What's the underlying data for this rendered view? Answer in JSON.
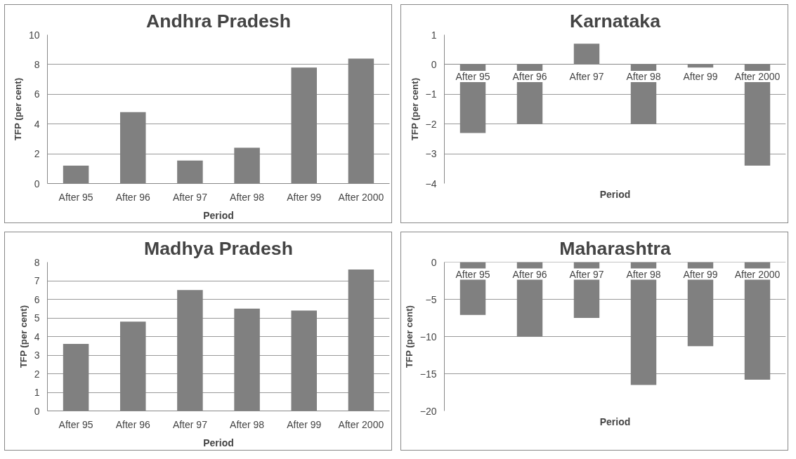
{
  "chart_data": [
    {
      "type": "bar",
      "title": "Andhra Pradesh",
      "xlabel": "Period",
      "ylabel": "TFP (per cent)",
      "categories": [
        "After 95",
        "After 96",
        "After 97",
        "After 98",
        "After 99",
        "After 2000"
      ],
      "values": [
        1.2,
        4.8,
        1.55,
        2.4,
        7.8,
        8.4
      ],
      "color": "#808080",
      "ylim": [
        0,
        10
      ],
      "yticks": [
        0,
        2,
        4,
        6,
        8,
        10
      ],
      "grid": "y",
      "legend": false
    },
    {
      "type": "bar",
      "title": "Karnataka",
      "xlabel": "Period",
      "ylabel": "TFP (per cent)",
      "categories": [
        "After 95",
        "After 96",
        "After 97",
        "After 98",
        "After 99",
        "After 2000"
      ],
      "values": [
        -2.3,
        -2.0,
        0.7,
        -2.0,
        -0.1,
        -3.4
      ],
      "color": "#808080",
      "ylim": [
        -4,
        1
      ],
      "yticks": [
        -4,
        -3,
        -2,
        -1,
        0,
        1
      ],
      "grid": "y",
      "legend": false
    },
    {
      "type": "bar",
      "title": "Madhya Pradesh",
      "xlabel": "Period",
      "ylabel": "TFP (per cent)",
      "categories": [
        "After 95",
        "After 96",
        "After 97",
        "After 98",
        "After 99",
        "After 2000"
      ],
      "values": [
        3.6,
        4.8,
        6.5,
        5.5,
        5.4,
        7.6
      ],
      "color": "#808080",
      "ylim": [
        0,
        8
      ],
      "yticks": [
        0,
        1,
        2,
        3,
        4,
        5,
        6,
        7,
        8
      ],
      "grid": "y",
      "legend": false
    },
    {
      "type": "bar",
      "title": "Maharashtra",
      "xlabel": "Period",
      "ylabel": "TFP (per cent)",
      "categories": [
        "After 95",
        "After 96",
        "After 97",
        "After 98",
        "After 99",
        "After 2000"
      ],
      "values": [
        -7.1,
        -10,
        -7.5,
        -16.5,
        -11.3,
        -15.8
      ],
      "color": "#808080",
      "ylim": [
        -20,
        0
      ],
      "yticks": [
        -20,
        -15,
        -10,
        -5,
        0
      ],
      "grid": "y",
      "legend": false
    }
  ]
}
